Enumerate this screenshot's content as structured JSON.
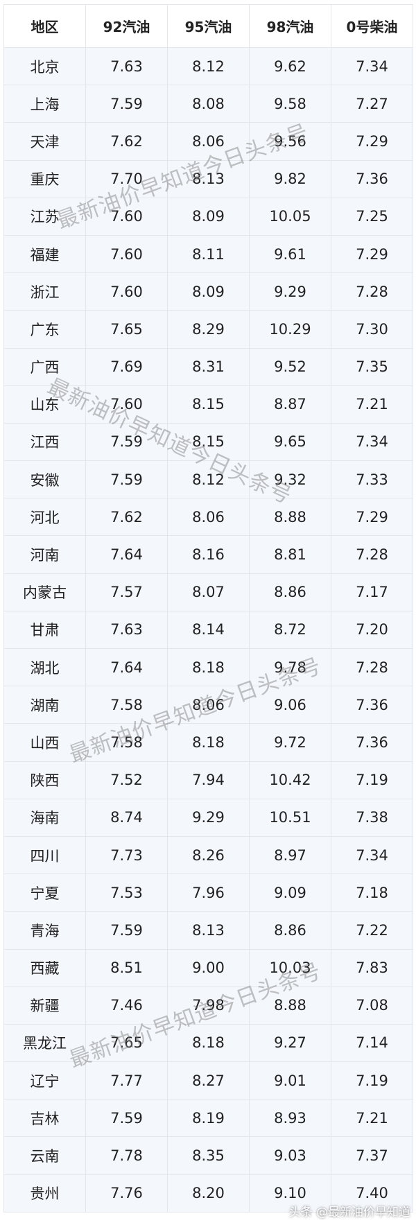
{
  "table": {
    "headers": [
      "地区",
      "92汽油",
      "95汽油",
      "98汽油",
      "0号柴油"
    ],
    "rows": [
      [
        "北京",
        "7.63",
        "8.12",
        "9.62",
        "7.34"
      ],
      [
        "上海",
        "7.59",
        "8.08",
        "9.58",
        "7.27"
      ],
      [
        "天津",
        "7.62",
        "8.06",
        "9.56",
        "7.29"
      ],
      [
        "重庆",
        "7.70",
        "8.13",
        "9.82",
        "7.36"
      ],
      [
        "江苏",
        "7.60",
        "8.09",
        "10.05",
        "7.25"
      ],
      [
        "福建",
        "7.60",
        "8.11",
        "9.61",
        "7.29"
      ],
      [
        "浙江",
        "7.60",
        "8.09",
        "9.29",
        "7.28"
      ],
      [
        "广东",
        "7.65",
        "8.29",
        "10.29",
        "7.30"
      ],
      [
        "广西",
        "7.69",
        "8.31",
        "9.52",
        "7.35"
      ],
      [
        "山东",
        "7.60",
        "8.15",
        "8.87",
        "7.21"
      ],
      [
        "江西",
        "7.59",
        "8.15",
        "9.65",
        "7.34"
      ],
      [
        "安徽",
        "7.59",
        "8.12",
        "9.32",
        "7.33"
      ],
      [
        "河北",
        "7.62",
        "8.06",
        "8.88",
        "7.29"
      ],
      [
        "河南",
        "7.64",
        "8.16",
        "8.81",
        "7.28"
      ],
      [
        "内蒙古",
        "7.57",
        "8.07",
        "8.86",
        "7.17"
      ],
      [
        "甘肃",
        "7.63",
        "8.14",
        "8.72",
        "7.20"
      ],
      [
        "湖北",
        "7.64",
        "8.18",
        "9.78",
        "7.28"
      ],
      [
        "湖南",
        "7.58",
        "8.06",
        "9.06",
        "7.36"
      ],
      [
        "山西",
        "7.58",
        "8.18",
        "9.72",
        "7.36"
      ],
      [
        "陕西",
        "7.52",
        "7.94",
        "10.42",
        "7.19"
      ],
      [
        "海南",
        "8.74",
        "9.29",
        "10.51",
        "7.38"
      ],
      [
        "四川",
        "7.73",
        "8.26",
        "8.97",
        "7.34"
      ],
      [
        "宁夏",
        "7.53",
        "7.96",
        "9.09",
        "7.18"
      ],
      [
        "青海",
        "7.59",
        "8.13",
        "8.86",
        "7.22"
      ],
      [
        "西藏",
        "8.51",
        "9.00",
        "10.03",
        "7.83"
      ],
      [
        "新疆",
        "7.46",
        "7.98",
        "8.88",
        "7.08"
      ],
      [
        "黑龙江",
        "7.65",
        "8.18",
        "9.27",
        "7.14"
      ],
      [
        "辽宁",
        "7.77",
        "8.27",
        "9.01",
        "7.19"
      ],
      [
        "吉林",
        "7.59",
        "8.19",
        "8.93",
        "7.21"
      ],
      [
        "云南",
        "7.78",
        "8.35",
        "9.03",
        "7.37"
      ],
      [
        "贵州",
        "7.76",
        "8.20",
        "9.10",
        "7.40"
      ]
    ]
  },
  "watermark": "最新油价早知道今日头条号",
  "footer": "头条 @最新油价早知道"
}
